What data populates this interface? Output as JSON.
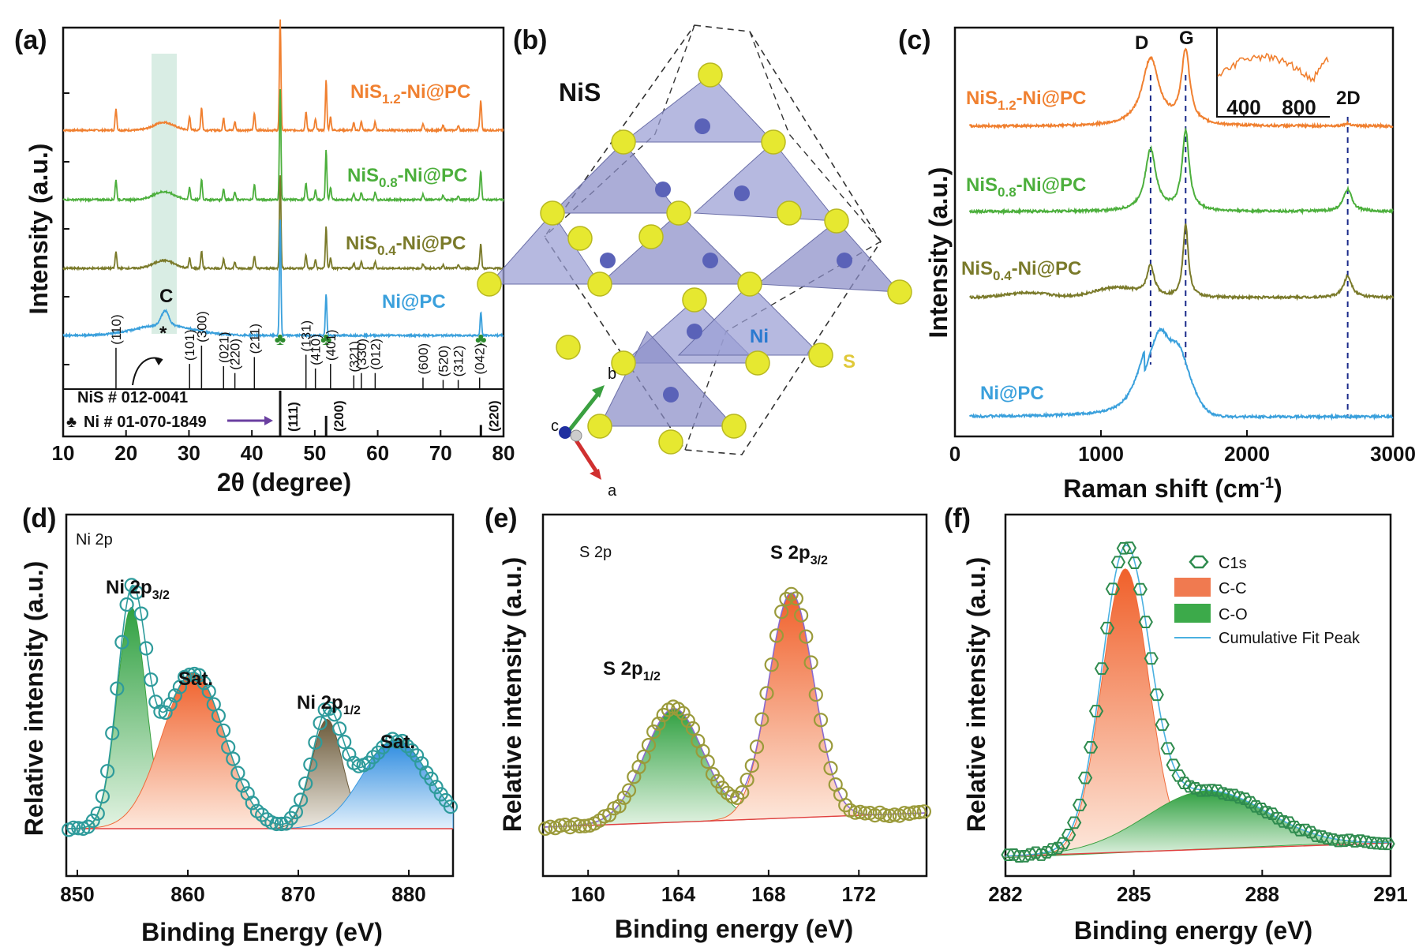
{
  "chart_data": [
    {
      "panel": "(a)",
      "type": "line",
      "xlabel": "2θ (degree)",
      "ylabel": "Intensity (a.u.)",
      "xlim": [
        10,
        80
      ],
      "xticks": [
        10,
        20,
        30,
        40,
        50,
        60,
        70,
        80
      ],
      "series": [
        {
          "name": "NiS1.2-Ni@PC",
          "color": "#f08030"
        },
        {
          "name": "NiS0.8-Ni@PC",
          "color": "#4caf3c"
        },
        {
          "name": "NiS0.4-Ni@PC",
          "color": "#7a7a2a"
        },
        {
          "name": "Ni@PC",
          "color": "#3aa0dc"
        }
      ],
      "label_nis12_a": "NiS",
      "label_nis12_b": "1.2",
      "label_nis12_c": "-Ni@PC",
      "label_nis08_a": "NiS",
      "label_nis08_b": "0.8",
      "label_nis08_c": "-Ni@PC",
      "label_nis04_a": "NiS",
      "label_nis04_b": "0.4",
      "label_nis04_c": "-Ni@PC",
      "label_nipc": "Ni@PC",
      "carbon_label": "C",
      "star": "*",
      "reference_nis": "NiS # 012-0041",
      "reference_ni": "Ni # 01-070-1849",
      "nis_peaks": [
        {
          "x": 18.4,
          "h": 0.9,
          "hkl": "(110)"
        },
        {
          "x": 30.1,
          "h": 0.55,
          "hkl": "(101)"
        },
        {
          "x": 32.0,
          "h": 0.95,
          "hkl": "(300)"
        },
        {
          "x": 35.5,
          "h": 0.5,
          "hkl": "(021)"
        },
        {
          "x": 37.3,
          "h": 0.35,
          "hkl": "(220)"
        },
        {
          "x": 40.4,
          "h": 0.7,
          "hkl": "(211)"
        },
        {
          "x": 48.6,
          "h": 0.75,
          "hkl": "(131)"
        },
        {
          "x": 50.1,
          "h": 0.45,
          "hkl": "(410)"
        },
        {
          "x": 52.5,
          "h": 0.55,
          "hkl": "(401)"
        },
        {
          "x": 56.2,
          "h": 0.3,
          "hkl": "(321)"
        },
        {
          "x": 57.4,
          "h": 0.35,
          "hkl": "(330)"
        },
        {
          "x": 59.6,
          "h": 0.35,
          "hkl": "(012)"
        },
        {
          "x": 67.2,
          "h": 0.25,
          "hkl": "(600)"
        },
        {
          "x": 70.4,
          "h": 0.2,
          "hkl": "(520)"
        },
        {
          "x": 72.8,
          "h": 0.2,
          "hkl": "(312)"
        },
        {
          "x": 76.2,
          "h": 0.25,
          "hkl": "(042)"
        }
      ],
      "ni_peaks": [
        {
          "x": 44.5,
          "h": 1.0,
          "hkl": "(111)"
        },
        {
          "x": 51.8,
          "h": 0.45,
          "hkl": "(200)"
        },
        {
          "x": 76.4,
          "h": 0.25,
          "hkl": "(220)"
        }
      ]
    },
    {
      "panel": "(b)",
      "type": "diagram",
      "title": "NiS",
      "label_ni": "Ni",
      "label_s": "S",
      "axis_a": "a",
      "axis_b": "b",
      "axis_c": "c"
    },
    {
      "panel": "(c)",
      "type": "line",
      "xlabel_a": "Raman shift (cm",
      "xlabel_b": "-1",
      "xlabel_c": ")",
      "ylabel": "Intensity (a.u.)",
      "xlim": [
        0,
        3000
      ],
      "xticks": [
        0,
        1000,
        2000,
        3000
      ],
      "band_d": "D",
      "band_g": "G",
      "band_2d": "2D",
      "band_positions": {
        "D": 1340,
        "G": 1580,
        "2D": 2690
      },
      "inset_ticks": [
        400,
        800
      ],
      "series": [
        {
          "name": "NiS1.2-Ni@PC",
          "color": "#f08030"
        },
        {
          "name": "NiS0.8-Ni@PC",
          "color": "#4caf3c"
        },
        {
          "name": "NiS0.4-Ni@PC",
          "color": "#7a7a2a"
        },
        {
          "name": "Ni@PC",
          "color": "#3aa0dc"
        }
      ],
      "label_nis12_a": "NiS",
      "label_nis12_b": "1.2",
      "label_nis12_c": "-Ni@PC",
      "label_nis08_a": "NiS",
      "label_nis08_b": "0.8",
      "label_nis08_c": "-Ni@PC",
      "label_nis04_a": "NiS",
      "label_nis04_b": "0.4",
      "label_nis04_c": "-Ni@PC",
      "label_nipc": "Ni@PC"
    },
    {
      "panel": "(d)",
      "type": "scatter",
      "region": "Ni 2p",
      "xlabel": "Binding Energy (eV)",
      "ylabel": "Relative intensity (a.u.)",
      "xlim": [
        849,
        884
      ],
      "xticks": [
        850,
        860,
        870,
        880
      ],
      "peak1_a": "Ni 2p",
      "peak1_b": "3/2",
      "peak2_a": "Ni 2p",
      "peak2_b": "1/2",
      "sat": "Sat.",
      "components": [
        {
          "center": 854.9,
          "height": 0.85,
          "width": 1.3
        },
        {
          "center": 860.5,
          "height": 0.6,
          "width": 2.8
        },
        {
          "center": 872.6,
          "height": 0.42,
          "width": 1.4
        },
        {
          "center": 878.8,
          "height": 0.34,
          "width": 3.0
        }
      ]
    },
    {
      "panel": "(e)",
      "type": "scatter",
      "region": "S 2p",
      "xlabel": "Binding energy (eV)",
      "ylabel": "Relative intensity (a.u.)",
      "xlim": [
        158,
        175
      ],
      "xticks": [
        160,
        164,
        168,
        172
      ],
      "peak1_a": "S 2p",
      "peak1_b": "1/2",
      "peak2_a": "S 2p",
      "peak2_b": "3/2",
      "components": [
        {
          "center": 163.8,
          "height": 0.48,
          "width": 1.3
        },
        {
          "center": 169.0,
          "height": 0.95,
          "width": 1.0
        }
      ]
    },
    {
      "panel": "(f)",
      "type": "scatter",
      "xlabel": "Binding energy (eV)",
      "ylabel": "Relative intensity (a.u.)",
      "xlim": [
        282,
        291
      ],
      "xticks": [
        282,
        285,
        288,
        291
      ],
      "legend": [
        "C1s",
        "C-C",
        "C-O",
        "Cumulative Fit Peak"
      ],
      "components": [
        {
          "name": "C-C",
          "center": 284.8,
          "height": 0.97,
          "width": 0.55
        },
        {
          "name": "C-O",
          "center": 286.7,
          "height": 0.2,
          "width": 1.4
        }
      ]
    }
  ]
}
